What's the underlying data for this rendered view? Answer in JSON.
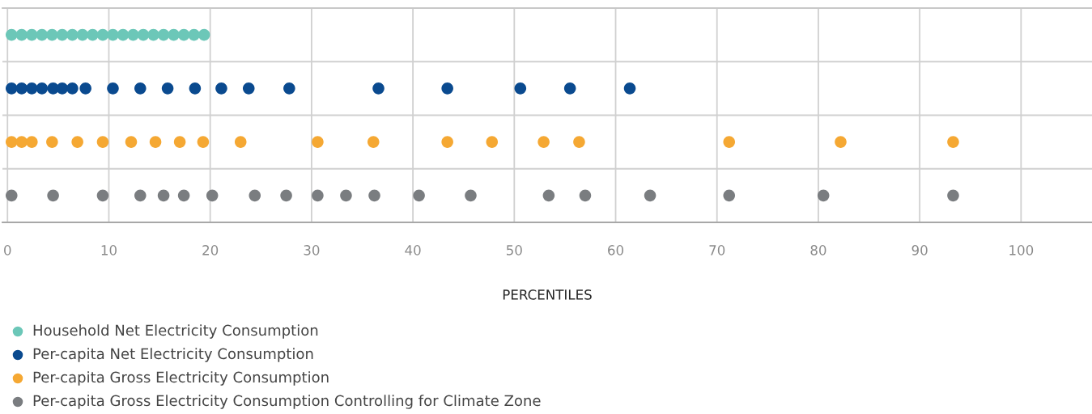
{
  "chart_data": {
    "type": "scatter",
    "orientation": "horizontal",
    "xlabel": "PERCENTILES",
    "categories": [
      null,
      null,
      null,
      null
    ],
    "xlim": [
      -0.5,
      107
    ],
    "xticks": [
      0,
      10,
      20,
      30,
      40,
      50,
      60,
      70,
      80,
      90,
      100
    ],
    "grid": "x",
    "marker": "circle",
    "annotations": [
      "Household Net Electricity Consumption",
      "Per-capita Net Electricity Consumption",
      "Per-capita Gross Electricity Consumption",
      "Per-capita Gross Electricity Consumption Controlling for Climate Zone"
    ],
    "series": [
      {
        "colors": [
          "#6cc7b8",
          "#0a4a8f",
          "#f5a833",
          "#7a7d80"
        ],
        "values": [
          0.4,
          0.4,
          0.4,
          0.4
        ]
      },
      {
        "colors": [
          "#6cc7b8",
          "#0a4a8f",
          "#f5a833",
          "#7a7d80"
        ],
        "values": [
          1.4,
          1.4,
          1.4,
          4.5
        ]
      },
      {
        "colors": [
          "#6cc7b8",
          "#0a4a8f",
          "#f5a833",
          "#7a7d80"
        ],
        "values": [
          2.4,
          2.4,
          2.4,
          9.4
        ]
      },
      {
        "colors": [
          "#6cc7b8",
          "#0a4a8f",
          "#f5a833",
          "#7a7d80"
        ],
        "values": [
          3.4,
          3.4,
          4.4,
          13.1
        ]
      },
      {
        "colors": [
          "#6cc7b8",
          "#0a4a8f",
          "#f5a833",
          "#7a7d80"
        ],
        "values": [
          4.4,
          4.5,
          6.9,
          15.4
        ]
      },
      {
        "colors": [
          "#6cc7b8",
          "#0a4a8f",
          "#f5a833",
          "#7a7d80"
        ],
        "values": [
          5.4,
          5.4,
          9.4,
          17.4
        ]
      },
      {
        "colors": [
          "#6cc7b8",
          "#0a4a8f",
          "#f5a833",
          "#7a7d80"
        ],
        "values": [
          6.4,
          6.4,
          12.2,
          20.2
        ]
      },
      {
        "colors": [
          "#6cc7b8",
          "#0a4a8f",
          "#f5a833",
          "#7a7d80"
        ],
        "values": [
          7.4,
          7.7,
          14.6,
          24.4
        ]
      },
      {
        "colors": [
          "#6cc7b8",
          "#0a4a8f",
          "#f5a833",
          "#7a7d80"
        ],
        "values": [
          8.4,
          10.4,
          17.0,
          27.5
        ]
      },
      {
        "colors": [
          "#6cc7b8",
          "#0a4a8f",
          "#f5a833",
          "#7a7d80"
        ],
        "values": [
          9.4,
          13.1,
          19.3,
          30.6
        ]
      },
      {
        "colors": [
          "#6cc7b8",
          "#0a4a8f",
          "#f5a833",
          "#7a7d80"
        ],
        "values": [
          10.4,
          15.8,
          23.0,
          33.4
        ]
      },
      {
        "colors": [
          "#6cc7b8",
          "#0a4a8f",
          "#f5a833",
          "#7a7d80"
        ],
        "values": [
          11.4,
          18.5,
          30.6,
          36.2
        ]
      },
      {
        "colors": [
          "#6cc7b8",
          "#0a4a8f",
          "#f5a833",
          "#7a7d80"
        ],
        "values": [
          12.4,
          21.1,
          36.1,
          40.6
        ]
      },
      {
        "colors": [
          "#6cc7b8",
          "#0a4a8f",
          "#f5a833",
          "#7a7d80"
        ],
        "values": [
          13.4,
          23.8,
          43.4,
          45.7
        ]
      },
      {
        "colors": [
          "#6cc7b8",
          "#0a4a8f",
          "#f5a833",
          "#7a7d80"
        ],
        "values": [
          14.4,
          27.8,
          47.8,
          53.4
        ]
      },
      {
        "colors": [
          "#6cc7b8",
          "#0a4a8f",
          "#f5a833",
          "#7a7d80"
        ],
        "values": [
          15.4,
          36.6,
          52.9,
          57.0
        ]
      },
      {
        "colors": [
          "#6cc7b8",
          "#0a4a8f",
          "#f5a833",
          "#7a7d80"
        ],
        "values": [
          16.4,
          43.4,
          56.4,
          63.4
        ]
      },
      {
        "colors": [
          "#6cc7b8",
          "#0a4a8f",
          "#f5a833",
          "#7a7d80"
        ],
        "values": [
          17.4,
          50.6,
          71.2,
          71.2
        ]
      },
      {
        "colors": [
          "#6cc7b8",
          "#0a4a8f",
          "#f5a833",
          "#7a7d80"
        ],
        "values": [
          18.4,
          55.5,
          82.2,
          80.5
        ]
      },
      {
        "colors": [
          "#6cc7b8",
          "#0a4a8f",
          "#f5a833",
          "#7a7d80"
        ],
        "values": [
          19.4,
          61.4,
          93.3,
          93.3
        ]
      }
    ]
  }
}
